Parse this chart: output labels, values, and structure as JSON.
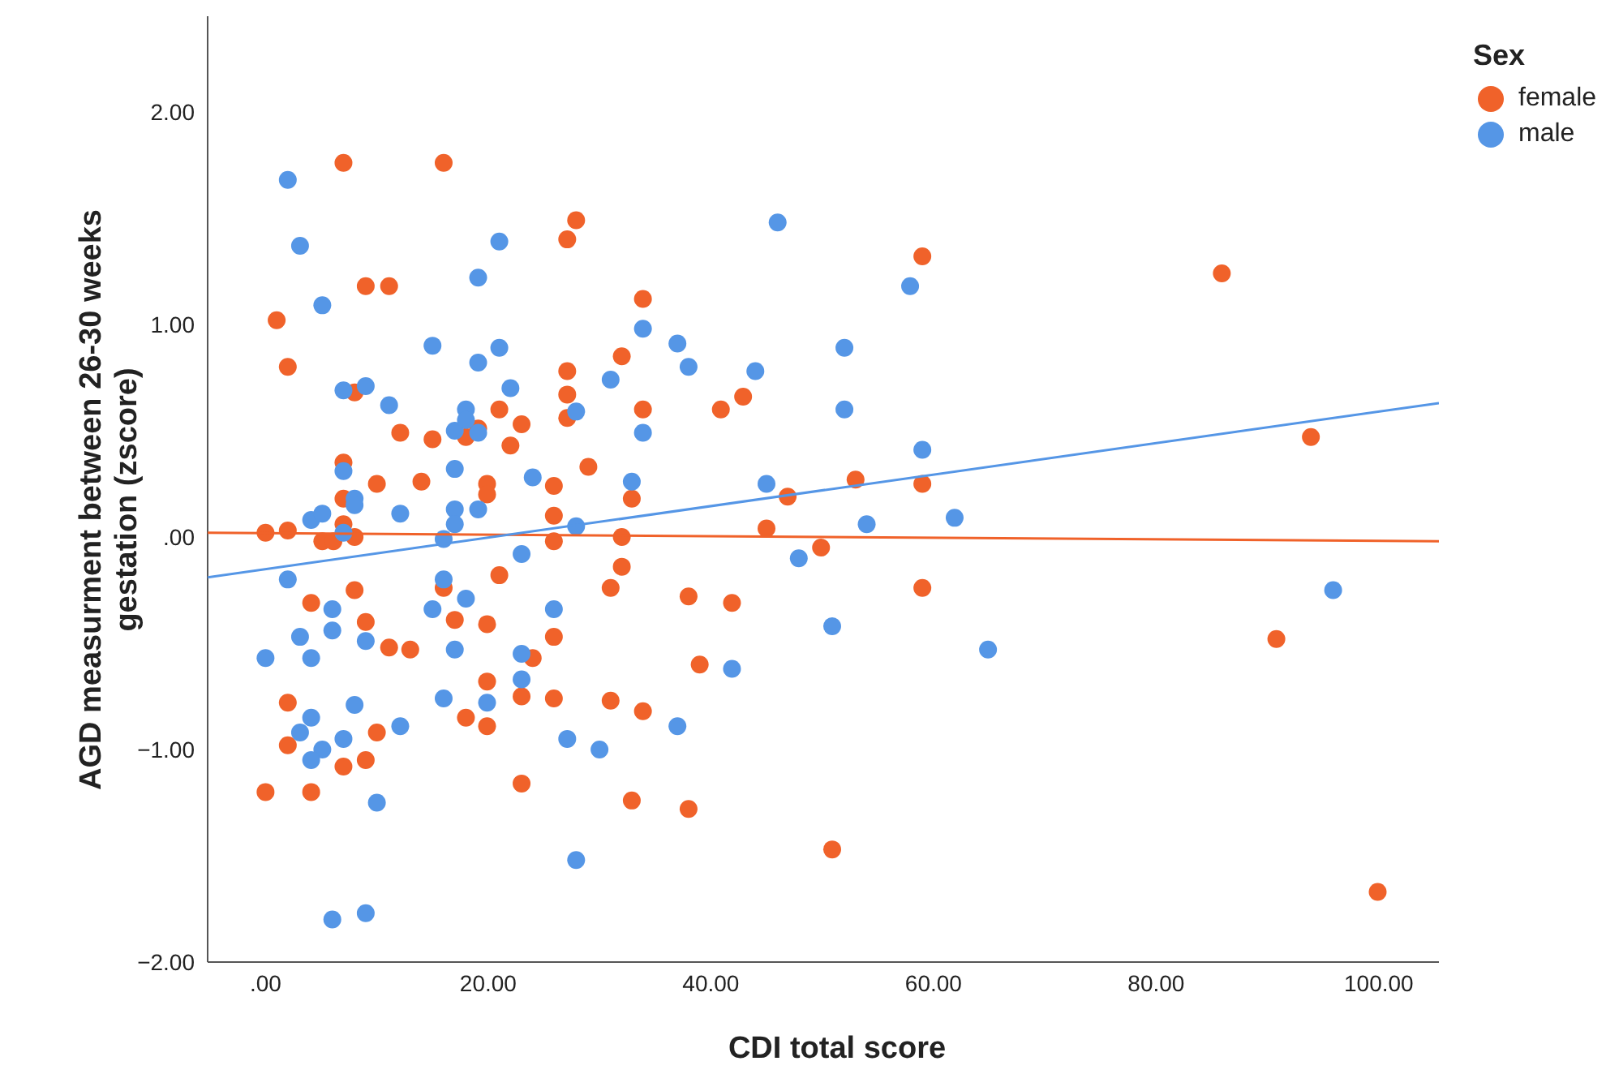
{
  "chart_data": {
    "type": "scatter",
    "xlabel": "CDI total score",
    "ylabel": "AGD measurment between 26-30 weeks gestation (zscore)",
    "legend_title": "Sex",
    "legend": "top right",
    "marker": "circle",
    "grid": false,
    "xlim": [
      -5.2,
      105.4
    ],
    "ylim": [
      -2,
      2.45
    ],
    "xticks": [
      {
        "value": 0,
        "label": ".00"
      },
      {
        "value": 20,
        "label": "20.00"
      },
      {
        "value": 40,
        "label": "40.00"
      },
      {
        "value": 60,
        "label": "60.00"
      },
      {
        "value": 80,
        "label": "80.00"
      },
      {
        "value": 100,
        "label": "100.00"
      }
    ],
    "yticks": [
      {
        "value": -2,
        "label": "−2.00"
      },
      {
        "value": -1,
        "label": "−1.00"
      },
      {
        "value": 0,
        "label": ".00"
      },
      {
        "value": 1,
        "label": "1.00"
      },
      {
        "value": 2,
        "label": "2.00"
      }
    ],
    "series": [
      {
        "name": "female",
        "color": "#f0622a",
        "x": [
          7.0,
          16.0,
          9.0,
          11.1,
          1.0,
          2.0,
          8.0,
          21.0,
          23.0,
          12.1,
          15.0,
          18.0,
          19.1,
          22.0,
          10.0,
          14.0,
          19.9,
          19.9,
          7.0,
          7.0,
          7.0,
          0.0,
          2.0,
          5.1,
          6.1,
          8.0,
          21.0,
          16.0,
          8.0,
          4.1,
          9.0,
          17.0,
          19.9,
          11.1,
          13.0,
          19.9,
          23.0,
          2.0,
          18.0,
          19.9,
          10.0,
          2.0,
          9.0,
          7.0,
          0.0,
          4.1,
          23.0,
          27.9,
          27.1,
          59.0,
          33.9,
          32.0,
          27.1,
          27.1,
          27.1,
          33.9,
          40.9,
          42.9,
          29.0,
          25.9,
          32.9,
          25.9,
          25.9,
          32.0,
          45.0,
          46.9,
          53.0,
          59.0,
          49.9,
          32.0,
          31.0,
          59.0,
          38.0,
          41.9,
          25.9,
          24.0,
          39.0,
          25.9,
          31.0,
          33.9,
          32.9,
          38.0,
          50.9,
          85.9,
          93.9,
          90.8,
          99.9
        ],
        "values": [
          1.76,
          1.76,
          1.18,
          1.18,
          1.02,
          0.8,
          0.68,
          0.6,
          0.53,
          0.49,
          0.46,
          0.47,
          0.51,
          0.43,
          0.25,
          0.26,
          0.25,
          0.2,
          0.35,
          0.18,
          0.06,
          0.02,
          0.03,
          -0.02,
          -0.02,
          0.0,
          -0.18,
          -0.24,
          -0.25,
          -0.31,
          -0.4,
          -0.39,
          -0.41,
          -0.52,
          -0.53,
          -0.68,
          -0.75,
          -0.78,
          -0.85,
          -0.89,
          -0.92,
          -0.98,
          -1.05,
          -1.08,
          -1.2,
          -1.2,
          -1.16,
          1.49,
          1.4,
          1.32,
          1.12,
          0.85,
          0.78,
          0.67,
          0.56,
          0.6,
          0.6,
          0.66,
          0.33,
          0.24,
          0.18,
          0.1,
          -0.02,
          0.0,
          0.04,
          0.19,
          0.27,
          0.25,
          -0.05,
          -0.14,
          -0.24,
          -0.24,
          -0.28,
          -0.31,
          -0.47,
          -0.57,
          -0.6,
          -0.76,
          -0.77,
          -0.82,
          -1.24,
          -1.28,
          -1.47,
          1.24,
          0.47,
          -0.48,
          -1.67
        ]
      },
      {
        "name": "male",
        "color": "#5596e6",
        "x": [
          2.0,
          3.1,
          21.0,
          19.1,
          5.1,
          15.0,
          19.1,
          21.0,
          7.0,
          9.0,
          22.0,
          11.1,
          18.0,
          17.0,
          19.1,
          18.0,
          17.0,
          7.0,
          8.0,
          8.0,
          4.1,
          5.1,
          12.1,
          17.0,
          17.0,
          19.1,
          7.0,
          16.0,
          23.0,
          2.0,
          16.0,
          18.0,
          15.0,
          6.0,
          3.1,
          6.0,
          9.0,
          0.0,
          4.1,
          17.0,
          23.0,
          23.0,
          16.0,
          19.9,
          4.1,
          8.0,
          3.1,
          5.1,
          4.1,
          7.0,
          12.1,
          10.0,
          6.0,
          9.0,
          46.0,
          57.9,
          33.9,
          37.0,
          38.0,
          31.0,
          44.0,
          52.0,
          52.0,
          27.9,
          33.9,
          59.0,
          24.0,
          32.9,
          45.0,
          27.9,
          54.0,
          61.9,
          47.9,
          25.9,
          50.9,
          41.9,
          27.1,
          30.0,
          37.0,
          27.9,
          64.9,
          95.9
        ],
        "values": [
          1.68,
          1.37,
          1.39,
          1.22,
          1.09,
          0.9,
          0.82,
          0.89,
          0.69,
          0.71,
          0.7,
          0.62,
          0.6,
          0.5,
          0.49,
          0.55,
          0.32,
          0.31,
          0.18,
          0.15,
          0.08,
          0.11,
          0.11,
          0.13,
          0.06,
          0.13,
          0.02,
          -0.01,
          -0.08,
          -0.2,
          -0.2,
          -0.29,
          -0.34,
          -0.34,
          -0.47,
          -0.44,
          -0.49,
          -0.57,
          -0.57,
          -0.53,
          -0.55,
          -0.67,
          -0.76,
          -0.78,
          -0.85,
          -0.79,
          -0.92,
          -1.0,
          -1.05,
          -0.95,
          -0.89,
          -1.25,
          -1.8,
          -1.77,
          1.48,
          1.18,
          0.98,
          0.91,
          0.8,
          0.74,
          0.78,
          0.89,
          0.6,
          0.59,
          0.49,
          0.41,
          0.28,
          0.26,
          0.25,
          0.05,
          0.06,
          0.09,
          -0.1,
          -0.34,
          -0.42,
          -0.62,
          -0.95,
          -1.0,
          -0.89,
          -1.52,
          -0.53,
          -0.25
        ]
      },
      {
        "type": "line",
        "marker": "none",
        "color": "#f0622a",
        "x": [
          -5.2,
          105.4
        ],
        "values": [
          0.02,
          -0.02
        ]
      },
      {
        "type": "line",
        "marker": "none",
        "color": "#5596e6",
        "x": [
          -5.2,
          105.4
        ],
        "values": [
          -0.19,
          0.63
        ]
      }
    ]
  }
}
